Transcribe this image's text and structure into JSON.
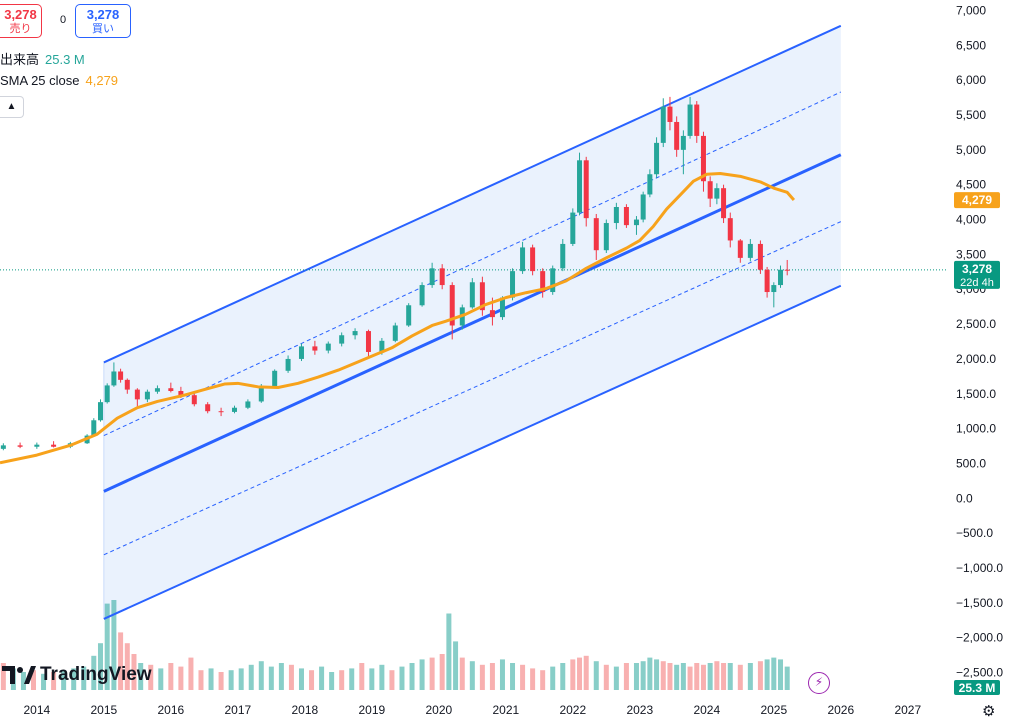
{
  "header": {
    "sell": {
      "value": "3,278",
      "label": "売り"
    },
    "spread": "0",
    "buy": {
      "value": "3,278",
      "label": "買い"
    }
  },
  "legend": {
    "volume_label": "出来高",
    "volume_value": "25.3 M",
    "sma_label": "SMA 25 close",
    "sma_value": "4,279"
  },
  "icons": {
    "collapse": "chevron-up-icon",
    "settings": "gear-icon",
    "alert": "lightning-icon",
    "logo": "tradingview-logo"
  },
  "logo_text": "TradingView",
  "colors": {
    "up": "#26a69a",
    "down": "#f23645",
    "up_volume": "#26a69a",
    "down_volume": "#f7a7a7",
    "sma": "#f7a21b",
    "channel": "#2962ff",
    "channel_fill": "#e8f1fd",
    "last_price": "#089981"
  },
  "chart_data": {
    "type": "candlestick",
    "interval": "1M",
    "xlabel": "",
    "ylabel": "",
    "x_ticks": [
      "2014",
      "2015",
      "2016",
      "2017",
      "2018",
      "2019",
      "2020",
      "2021",
      "2022",
      "2023",
      "2024",
      "2025",
      "2026",
      "2027"
    ],
    "y_ticks": [
      "7,000",
      "6,500",
      "6,000",
      "5,500",
      "5,000",
      "4,500",
      "4,000",
      "3,500",
      "3,000",
      "2,500.0",
      "2,000.0",
      "1,500.0",
      "1,000.0",
      "500.0",
      "0.0",
      "−500.0",
      "−1,000.0",
      "−1,500.0",
      "−2,000.0",
      "−2,500.0"
    ],
    "ylim": [
      -2750,
      7150
    ],
    "xlim": [
      2013.45,
      2027.6
    ],
    "grid": false,
    "price_labels": [
      {
        "text": "4,279",
        "value": 4279,
        "color": "#f7a21b"
      },
      {
        "text": "3,278",
        "sub": "22d 4h",
        "value": 3278,
        "color": "#089981"
      }
    ],
    "volume_badge": "25.3 M",
    "sma": {
      "name": "SMA 25 close",
      "points": [
        [
          2013.45,
          510
        ],
        [
          2014.0,
          620
        ],
        [
          2014.5,
          760
        ],
        [
          2014.9,
          920
        ],
        [
          2015.2,
          1150
        ],
        [
          2015.5,
          1300
        ],
        [
          2015.8,
          1390
        ],
        [
          2016.2,
          1480
        ],
        [
          2016.5,
          1560
        ],
        [
          2016.8,
          1640
        ],
        [
          2017.0,
          1650
        ],
        [
          2017.3,
          1600
        ],
        [
          2017.6,
          1590
        ],
        [
          2017.9,
          1650
        ],
        [
          2018.2,
          1740
        ],
        [
          2018.5,
          1840
        ],
        [
          2018.8,
          1960
        ],
        [
          2019.0,
          2040
        ],
        [
          2019.3,
          2160
        ],
        [
          2019.6,
          2330
        ],
        [
          2019.9,
          2480
        ],
        [
          2020.1,
          2540
        ],
        [
          2020.4,
          2640
        ],
        [
          2020.7,
          2780
        ],
        [
          2021.0,
          2880
        ],
        [
          2021.3,
          2950
        ],
        [
          2021.6,
          3010
        ],
        [
          2021.9,
          3120
        ],
        [
          2022.2,
          3300
        ],
        [
          2022.5,
          3450
        ],
        [
          2022.8,
          3590
        ],
        [
          2023.0,
          3700
        ],
        [
          2023.2,
          3900
        ],
        [
          2023.4,
          4150
        ],
        [
          2023.6,
          4350
        ],
        [
          2023.8,
          4550
        ],
        [
          2024.0,
          4650
        ],
        [
          2024.2,
          4660
        ],
        [
          2024.5,
          4620
        ],
        [
          2024.8,
          4540
        ],
        [
          2025.0,
          4450
        ],
        [
          2025.2,
          4390
        ],
        [
          2025.3,
          4280
        ]
      ]
    },
    "candles": [
      [
        2013.5,
        710,
        790,
        690,
        760
      ],
      [
        2013.75,
        760,
        800,
        720,
        740
      ],
      [
        2014.0,
        740,
        800,
        710,
        770
      ],
      [
        2014.25,
        770,
        820,
        730,
        740
      ],
      [
        2014.5,
        740,
        810,
        720,
        790
      ],
      [
        2014.75,
        790,
        920,
        780,
        900
      ],
      [
        2014.85,
        900,
        1150,
        880,
        1120
      ],
      [
        2014.95,
        1120,
        1420,
        1100,
        1380
      ],
      [
        2015.05,
        1380,
        1650,
        1360,
        1620
      ],
      [
        2015.15,
        1620,
        1950,
        1600,
        1820
      ],
      [
        2015.25,
        1820,
        1860,
        1660,
        1700
      ],
      [
        2015.35,
        1700,
        1720,
        1500,
        1560
      ],
      [
        2015.5,
        1560,
        1580,
        1320,
        1420
      ],
      [
        2015.65,
        1420,
        1560,
        1380,
        1530
      ],
      [
        2015.8,
        1530,
        1620,
        1500,
        1580
      ],
      [
        2016.0,
        1580,
        1660,
        1520,
        1540
      ],
      [
        2016.15,
        1540,
        1600,
        1440,
        1480
      ],
      [
        2016.35,
        1480,
        1500,
        1320,
        1350
      ],
      [
        2016.55,
        1350,
        1380,
        1220,
        1250
      ],
      [
        2016.75,
        1250,
        1300,
        1180,
        1240
      ],
      [
        2016.95,
        1240,
        1330,
        1220,
        1300
      ],
      [
        2017.15,
        1300,
        1420,
        1280,
        1390
      ],
      [
        2017.35,
        1390,
        1640,
        1370,
        1600
      ],
      [
        2017.55,
        1600,
        1850,
        1580,
        1830
      ],
      [
        2017.75,
        1830,
        2050,
        1800,
        2000
      ],
      [
        2017.95,
        2000,
        2220,
        1970,
        2180
      ],
      [
        2018.15,
        2180,
        2260,
        2060,
        2120
      ],
      [
        2018.35,
        2120,
        2250,
        2080,
        2220
      ],
      [
        2018.55,
        2220,
        2380,
        2180,
        2340
      ],
      [
        2018.75,
        2340,
        2440,
        2280,
        2400
      ],
      [
        2018.95,
        2400,
        2420,
        2020,
        2100
      ],
      [
        2019.15,
        2100,
        2300,
        2060,
        2260
      ],
      [
        2019.35,
        2260,
        2520,
        2240,
        2480
      ],
      [
        2019.55,
        2480,
        2800,
        2460,
        2770
      ],
      [
        2019.75,
        2770,
        3100,
        2750,
        3060
      ],
      [
        2019.9,
        3060,
        3380,
        3020,
        3300
      ],
      [
        2020.05,
        3300,
        3360,
        3000,
        3060
      ],
      [
        2020.2,
        3060,
        3100,
        2280,
        2480
      ],
      [
        2020.35,
        2480,
        2780,
        2420,
        2740
      ],
      [
        2020.5,
        2740,
        3160,
        2720,
        3100
      ],
      [
        2020.65,
        3100,
        3180,
        2620,
        2700
      ],
      [
        2020.8,
        2700,
        2880,
        2480,
        2600
      ],
      [
        2020.95,
        2600,
        2900,
        2560,
        2880
      ],
      [
        2021.1,
        2880,
        3300,
        2840,
        3260
      ],
      [
        2021.25,
        3260,
        3680,
        3220,
        3600
      ],
      [
        2021.4,
        3600,
        3640,
        3200,
        3260
      ],
      [
        2021.55,
        3260,
        3300,
        2880,
        2960
      ],
      [
        2021.7,
        2960,
        3340,
        2920,
        3300
      ],
      [
        2021.85,
        3300,
        3720,
        3260,
        3650
      ],
      [
        2022.0,
        3650,
        4160,
        3620,
        4100
      ],
      [
        2022.1,
        4100,
        4960,
        4060,
        4850
      ],
      [
        2022.2,
        4850,
        4900,
        3900,
        4020
      ],
      [
        2022.35,
        4020,
        4080,
        3420,
        3560
      ],
      [
        2022.5,
        3560,
        4000,
        3520,
        3950
      ],
      [
        2022.65,
        3950,
        4240,
        3860,
        4180
      ],
      [
        2022.8,
        4180,
        4220,
        3880,
        3920
      ],
      [
        2022.95,
        3920,
        4050,
        3780,
        4000
      ],
      [
        2023.05,
        4000,
        4400,
        3960,
        4360
      ],
      [
        2023.15,
        4360,
        4720,
        4320,
        4650
      ],
      [
        2023.25,
        4650,
        5180,
        4600,
        5100
      ],
      [
        2023.35,
        5100,
        5740,
        5040,
        5620
      ],
      [
        2023.45,
        5620,
        5760,
        5280,
        5400
      ],
      [
        2023.55,
        5400,
        5480,
        4900,
        5000
      ],
      [
        2023.65,
        5000,
        5280,
        4650,
        5200
      ],
      [
        2023.75,
        5200,
        5760,
        5160,
        5650
      ],
      [
        2023.85,
        5650,
        5700,
        5100,
        5200
      ],
      [
        2023.95,
        5200,
        5260,
        4400,
        4550
      ],
      [
        2024.05,
        4550,
        4620,
        4180,
        4300
      ],
      [
        2024.15,
        4300,
        4520,
        4220,
        4450
      ],
      [
        2024.25,
        4450,
        4500,
        3950,
        4020
      ],
      [
        2024.35,
        4020,
        4100,
        3600,
        3700
      ],
      [
        2024.5,
        3700,
        3720,
        3380,
        3450
      ],
      [
        2024.65,
        3450,
        3720,
        3400,
        3650
      ],
      [
        2024.8,
        3650,
        3700,
        3220,
        3280
      ],
      [
        2024.9,
        3280,
        3320,
        2880,
        2960
      ],
      [
        2025.0,
        2960,
        3100,
        2740,
        3060
      ],
      [
        2025.1,
        3060,
        3340,
        3020,
        3280
      ],
      [
        2025.2,
        3280,
        3420,
        3200,
        3278
      ]
    ],
    "volume": {
      "scale_max": 100,
      "bars": [
        [
          2013.5,
          30,
          "down"
        ],
        [
          2013.65,
          24,
          "up"
        ],
        [
          2013.8,
          20,
          "up"
        ],
        [
          2013.95,
          22,
          "down"
        ],
        [
          2014.1,
          18,
          "up"
        ],
        [
          2014.25,
          20,
          "down"
        ],
        [
          2014.4,
          22,
          "up"
        ],
        [
          2014.55,
          24,
          "up"
        ],
        [
          2014.7,
          26,
          "up"
        ],
        [
          2014.85,
          38,
          "up"
        ],
        [
          2014.95,
          52,
          "up"
        ],
        [
          2015.05,
          96,
          "up"
        ],
        [
          2015.15,
          100,
          "up"
        ],
        [
          2015.25,
          64,
          "down"
        ],
        [
          2015.35,
          52,
          "down"
        ],
        [
          2015.45,
          40,
          "down"
        ],
        [
          2015.55,
          30,
          "up"
        ],
        [
          2015.7,
          28,
          "down"
        ],
        [
          2015.85,
          24,
          "up"
        ],
        [
          2016.0,
          30,
          "down"
        ],
        [
          2016.15,
          26,
          "down"
        ],
        [
          2016.3,
          36,
          "down"
        ],
        [
          2016.45,
          22,
          "down"
        ],
        [
          2016.6,
          24,
          "up"
        ],
        [
          2016.75,
          20,
          "down"
        ],
        [
          2016.9,
          22,
          "up"
        ],
        [
          2017.05,
          24,
          "up"
        ],
        [
          2017.2,
          28,
          "up"
        ],
        [
          2017.35,
          32,
          "up"
        ],
        [
          2017.5,
          26,
          "up"
        ],
        [
          2017.65,
          30,
          "up"
        ],
        [
          2017.8,
          28,
          "down"
        ],
        [
          2017.95,
          24,
          "up"
        ],
        [
          2018.1,
          22,
          "down"
        ],
        [
          2018.25,
          26,
          "up"
        ],
        [
          2018.4,
          20,
          "up"
        ],
        [
          2018.55,
          22,
          "down"
        ],
        [
          2018.7,
          24,
          "up"
        ],
        [
          2018.85,
          30,
          "down"
        ],
        [
          2019.0,
          24,
          "up"
        ],
        [
          2019.15,
          28,
          "up"
        ],
        [
          2019.3,
          22,
          "down"
        ],
        [
          2019.45,
          26,
          "up"
        ],
        [
          2019.6,
          30,
          "up"
        ],
        [
          2019.75,
          34,
          "up"
        ],
        [
          2019.9,
          36,
          "down"
        ],
        [
          2020.05,
          40,
          "down"
        ],
        [
          2020.15,
          85,
          "up"
        ],
        [
          2020.25,
          54,
          "up"
        ],
        [
          2020.35,
          36,
          "down"
        ],
        [
          2020.5,
          32,
          "up"
        ],
        [
          2020.65,
          28,
          "down"
        ],
        [
          2020.8,
          30,
          "down"
        ],
        [
          2020.95,
          34,
          "up"
        ],
        [
          2021.1,
          30,
          "up"
        ],
        [
          2021.25,
          28,
          "down"
        ],
        [
          2021.4,
          24,
          "down"
        ],
        [
          2021.55,
          22,
          "down"
        ],
        [
          2021.7,
          26,
          "up"
        ],
        [
          2021.85,
          30,
          "up"
        ],
        [
          2022.0,
          34,
          "down"
        ],
        [
          2022.1,
          36,
          "down"
        ],
        [
          2022.2,
          38,
          "down"
        ],
        [
          2022.35,
          32,
          "up"
        ],
        [
          2022.5,
          28,
          "down"
        ],
        [
          2022.65,
          26,
          "up"
        ],
        [
          2022.8,
          30,
          "down"
        ],
        [
          2022.95,
          30,
          "up"
        ],
        [
          2023.05,
          32,
          "up"
        ],
        [
          2023.15,
          36,
          "up"
        ],
        [
          2023.25,
          34,
          "up"
        ],
        [
          2023.35,
          32,
          "down"
        ],
        [
          2023.45,
          30,
          "down"
        ],
        [
          2023.55,
          28,
          "up"
        ],
        [
          2023.65,
          30,
          "up"
        ],
        [
          2023.75,
          26,
          "down"
        ],
        [
          2023.85,
          30,
          "down"
        ],
        [
          2023.95,
          28,
          "down"
        ],
        [
          2024.05,
          30,
          "up"
        ],
        [
          2024.15,
          32,
          "down"
        ],
        [
          2024.25,
          30,
          "down"
        ],
        [
          2024.35,
          30,
          "up"
        ],
        [
          2024.5,
          28,
          "down"
        ],
        [
          2024.65,
          30,
          "up"
        ],
        [
          2024.8,
          32,
          "down"
        ],
        [
          2024.9,
          34,
          "up"
        ],
        [
          2025.0,
          36,
          "up"
        ],
        [
          2025.1,
          34,
          "up"
        ],
        [
          2025.2,
          26,
          "up"
        ]
      ]
    },
    "channel": {
      "x_start": 2015.0,
      "x_end": 2026.0,
      "upper": [
        1950,
        6780
      ],
      "mid_upper_dashed": [
        900,
        5830
      ],
      "middle": [
        100,
        4930
      ],
      "mid_lower_dashed": [
        -810,
        3970
      ],
      "lower": [
        -1730,
        3050
      ]
    }
  }
}
